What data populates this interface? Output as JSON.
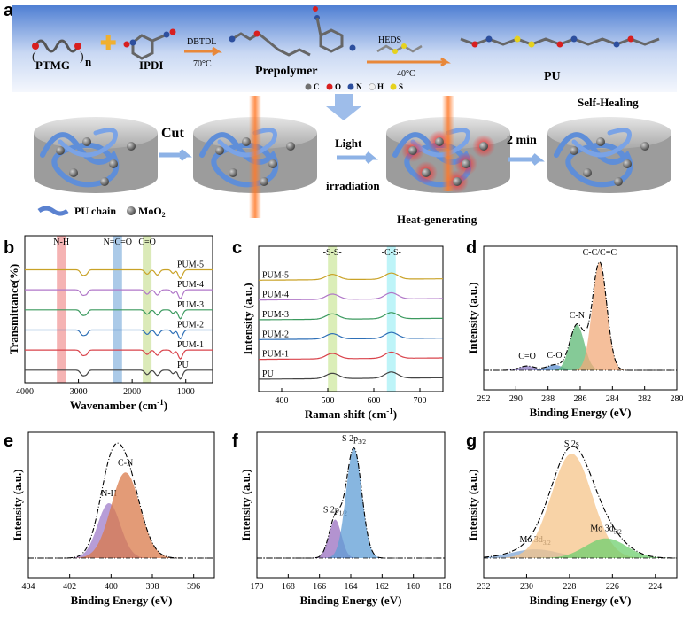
{
  "panel_letters": {
    "a": "a",
    "b": "b",
    "c": "c",
    "d": "d",
    "e": "e",
    "f": "f",
    "g": "g"
  },
  "scheme": {
    "reactants": [
      "PTMG",
      "IPDI",
      "Prepolymer",
      "PU"
    ],
    "ptmg_subscript": "n",
    "arrow1": {
      "top": "DBTDL",
      "bottom": "70°C"
    },
    "arrow2": {
      "top": "HEDS",
      "bottom": "40°C"
    },
    "atom_legend": [
      "C",
      "O",
      "N",
      "H",
      "S"
    ],
    "atom_colors": {
      "C": "#707070",
      "O": "#d81f1f",
      "N": "#2d4f9e",
      "H": "#f2f2f2",
      "S": "#e6d21e"
    },
    "steps": {
      "cut": "Cut",
      "light": "Light",
      "irradiation": "irradiation",
      "time": "2 min",
      "self_healing": "Self-Healing",
      "heat": "Heat-generating"
    },
    "legend": {
      "chain": "PU chain",
      "particle_prefix": "MoO",
      "particle_sub": "2"
    }
  },
  "chart_data": [
    {
      "id": "b",
      "type": "line",
      "title": "",
      "xlabel": "Wavenamber (cm",
      "xlabel_sup": "-1",
      "xlabel_tail": ")",
      "ylabel": "Transmittance(%)",
      "xlim": [
        4000,
        500
      ],
      "xticks": [
        "4000",
        "3000",
        "2000",
        "1000"
      ],
      "bands": [
        {
          "label": "N-H",
          "x": 3320,
          "color": "#f29a9a"
        },
        {
          "label": "N=C=O",
          "x": 2270,
          "color": "#8fb8e0"
        },
        {
          "label": "C=O",
          "x": 1720,
          "color": "#cfe3a0"
        }
      ],
      "series": [
        {
          "name": "PUM-5",
          "color": "#c9a227"
        },
        {
          "name": "PUM-4",
          "color": "#b077c8"
        },
        {
          "name": "PUM-3",
          "color": "#3c9a5f"
        },
        {
          "name": "PUM-2",
          "color": "#2d6fb7"
        },
        {
          "name": "PUM-1",
          "color": "#d9434b"
        },
        {
          "name": "PU",
          "color": "#444444"
        }
      ]
    },
    {
      "id": "c",
      "type": "line",
      "title": "",
      "xlabel": "Raman shift (cm",
      "xlabel_sup": "-1",
      "xlabel_tail": ")",
      "ylabel": "Intensity (a.u.)",
      "xlim": [
        350,
        750
      ],
      "xticks": [
        "400",
        "500",
        "600",
        "700"
      ],
      "bands": [
        {
          "label": "-S-S-",
          "x": 510,
          "color": "#cfe8a0"
        },
        {
          "label": "-C-S-",
          "x": 638,
          "color": "#a8f0f5"
        }
      ],
      "series": [
        {
          "name": "PUM-5",
          "color": "#c9a227"
        },
        {
          "name": "PUM-4",
          "color": "#b077c8"
        },
        {
          "name": "PUM-3",
          "color": "#3c9a5f"
        },
        {
          "name": "PUM-2",
          "color": "#2d6fb7"
        },
        {
          "name": "PUM-1",
          "color": "#d9434b"
        },
        {
          "name": "PU",
          "color": "#444444"
        }
      ]
    },
    {
      "id": "d",
      "type": "area",
      "title": "",
      "xlabel": "Binding Energy (eV)",
      "ylabel": "Intensity (a.u.)",
      "xlim": [
        292,
        280
      ],
      "xticks": [
        "292",
        "290",
        "288",
        "286",
        "284",
        "282",
        "280"
      ],
      "peaks": [
        {
          "label": "C=O",
          "center": 289.3,
          "height": 0.04,
          "width": 0.5,
          "color": "#8a78c2"
        },
        {
          "label": "C-O",
          "center": 287.6,
          "height": 0.05,
          "width": 0.5,
          "color": "#5b8fd0"
        },
        {
          "label": "C-N",
          "center": 286.2,
          "height": 0.42,
          "width": 0.45,
          "color": "#5cb874"
        },
        {
          "label": "C-C/C=C",
          "center": 284.8,
          "height": 1.0,
          "width": 0.45,
          "color": "#f2a97a"
        }
      ]
    },
    {
      "id": "e",
      "type": "area",
      "title": "",
      "xlabel": "Binding Energy (eV)",
      "ylabel": "Intensity (a.u.)",
      "xlim": [
        404,
        395
      ],
      "xticks": [
        "404",
        "402",
        "400",
        "398",
        "396"
      ],
      "peaks": [
        {
          "label": "N-H",
          "center": 400.1,
          "height": 0.5,
          "width": 0.55,
          "color": "#9f7cc9"
        },
        {
          "label": "C-N",
          "center": 399.3,
          "height": 0.78,
          "width": 0.7,
          "color": "#d97a4a"
        }
      ]
    },
    {
      "id": "f",
      "type": "area",
      "title": "",
      "xlabel": "Binding Energy (eV)",
      "ylabel": "Intensity (a.u.)",
      "xlim": [
        170,
        158
      ],
      "xticks": [
        "170",
        "168",
        "166",
        "164",
        "162",
        "160",
        "158"
      ],
      "peaks": [
        {
          "label": "S 2p",
          "sub": "1/2",
          "center": 165.0,
          "height": 0.35,
          "width": 0.4,
          "color": "#9a6fc0"
        },
        {
          "label": "S 2p",
          "sub": "3/2",
          "center": 163.8,
          "height": 1.0,
          "width": 0.5,
          "color": "#5f9ed6"
        }
      ]
    },
    {
      "id": "g",
      "type": "area",
      "title": "",
      "xlabel": "Binding Energy (eV)",
      "ylabel": "Intensity (a.u.)",
      "xlim": [
        232,
        223
      ],
      "xticks": [
        "232",
        "230",
        "228",
        "226",
        "224"
      ],
      "peaks": [
        {
          "label": "Mo 3d",
          "sub": "3/2",
          "center": 229.6,
          "height": 0.08,
          "width": 1.1,
          "color": "#7fa6d6"
        },
        {
          "label": "S 2s",
          "center": 227.9,
          "height": 0.95,
          "width": 0.95,
          "color": "#f6c48a"
        },
        {
          "label": "Mo 3d",
          "sub": "5/2",
          "center": 226.3,
          "height": 0.18,
          "width": 0.95,
          "color": "#6fcf6f"
        }
      ]
    }
  ]
}
